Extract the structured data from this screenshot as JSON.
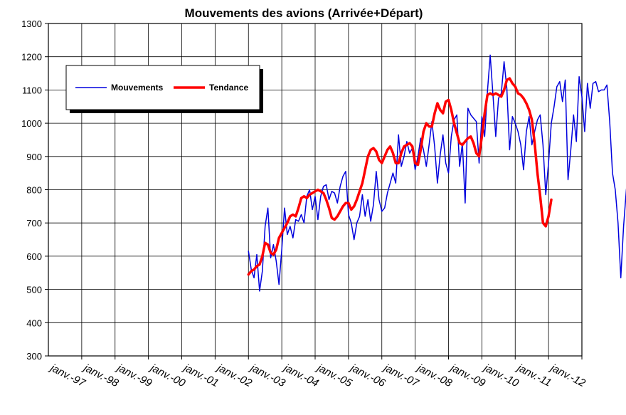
{
  "chart_data": {
    "type": "line",
    "title": "Mouvements des avions (Arrivée+Départ)",
    "xlabel": "",
    "ylabel": "",
    "ylim": [
      300,
      1300
    ],
    "yticks": [
      300,
      400,
      500,
      600,
      700,
      800,
      900,
      1000,
      1100,
      1200,
      1300
    ],
    "x_tick_labels": [
      "janv.-97",
      "janv.-98",
      "janv.-99",
      "janv.-00",
      "janv.-01",
      "janv.-02",
      "janv.-03",
      "janv.-04",
      "janv.-05",
      "janv.-06",
      "janv.-07",
      "janv.-08",
      "janv.-09",
      "janv.-10",
      "janv.-11",
      "janv.-12"
    ],
    "x_start": "janv.-97",
    "grid": true,
    "legend": "top-left",
    "series": [
      {
        "name": "Mouvements",
        "color": "#0000dd",
        "start": "janv.-02",
        "values": [
          615,
          560,
          535,
          605,
          495,
          555,
          690,
          745,
          595,
          635,
          585,
          515,
          620,
          745,
          665,
          690,
          655,
          710,
          705,
          725,
          700,
          780,
          800,
          740,
          780,
          710,
          780,
          810,
          815,
          770,
          795,
          790,
          760,
          810,
          840,
          855,
          725,
          700,
          650,
          700,
          720,
          785,
          720,
          770,
          705,
          755,
          855,
          770,
          735,
          745,
          790,
          820,
          850,
          820,
          965,
          870,
          900,
          945,
          910,
          925,
          860,
          900,
          955,
          920,
          870,
          935,
          1005,
          930,
          820,
          905,
          965,
          880,
          850,
          960,
          1010,
          1025,
          870,
          940,
          760,
          1045,
          1025,
          1015,
          1005,
          880,
          1020,
          960,
          1095,
          1205,
          1085,
          960,
          1075,
          1090,
          1185,
          1105,
          920,
          1020,
          1000,
          975,
          935,
          860,
          975,
          1020,
          935,
          975,
          1010,
          1025,
          935,
          785,
          880,
          1000,
          1050,
          1110,
          1125,
          1065,
          1130,
          830,
          920,
          1025,
          945,
          1140,
          1080,
          975,
          1120,
          1045,
          1120,
          1125,
          1095,
          1100,
          1100,
          1115,
          1005,
          850,
          800,
          700,
          535,
          690,
          800,
          865
        ]
      },
      {
        "name": "Tendance",
        "color": "#ff0000",
        "start": "janv.-02",
        "values": [
          545,
          555,
          560,
          570,
          575,
          600,
          640,
          635,
          610,
          605,
          620,
          655,
          670,
          685,
          700,
          720,
          725,
          720,
          745,
          775,
          780,
          775,
          785,
          790,
          795,
          800,
          795,
          790,
          770,
          745,
          715,
          710,
          720,
          735,
          750,
          760,
          760,
          740,
          750,
          770,
          795,
          820,
          860,
          900,
          920,
          925,
          915,
          890,
          880,
          900,
          920,
          930,
          910,
          880,
          880,
          910,
          930,
          935,
          940,
          930,
          880,
          875,
          920,
          975,
          1000,
          990,
          990,
          1030,
          1060,
          1040,
          1030,
          1065,
          1070,
          1040,
          1000,
          970,
          940,
          935,
          945,
          955,
          960,
          940,
          910,
          900,
          960,
          1030,
          1085,
          1090,
          1085,
          1090,
          1085,
          1080,
          1100,
          1130,
          1135,
          1120,
          1110,
          1090,
          1085,
          1075,
          1060,
          1040,
          1010,
          940,
          850,
          780,
          700,
          690,
          720,
          770
        ]
      }
    ]
  }
}
